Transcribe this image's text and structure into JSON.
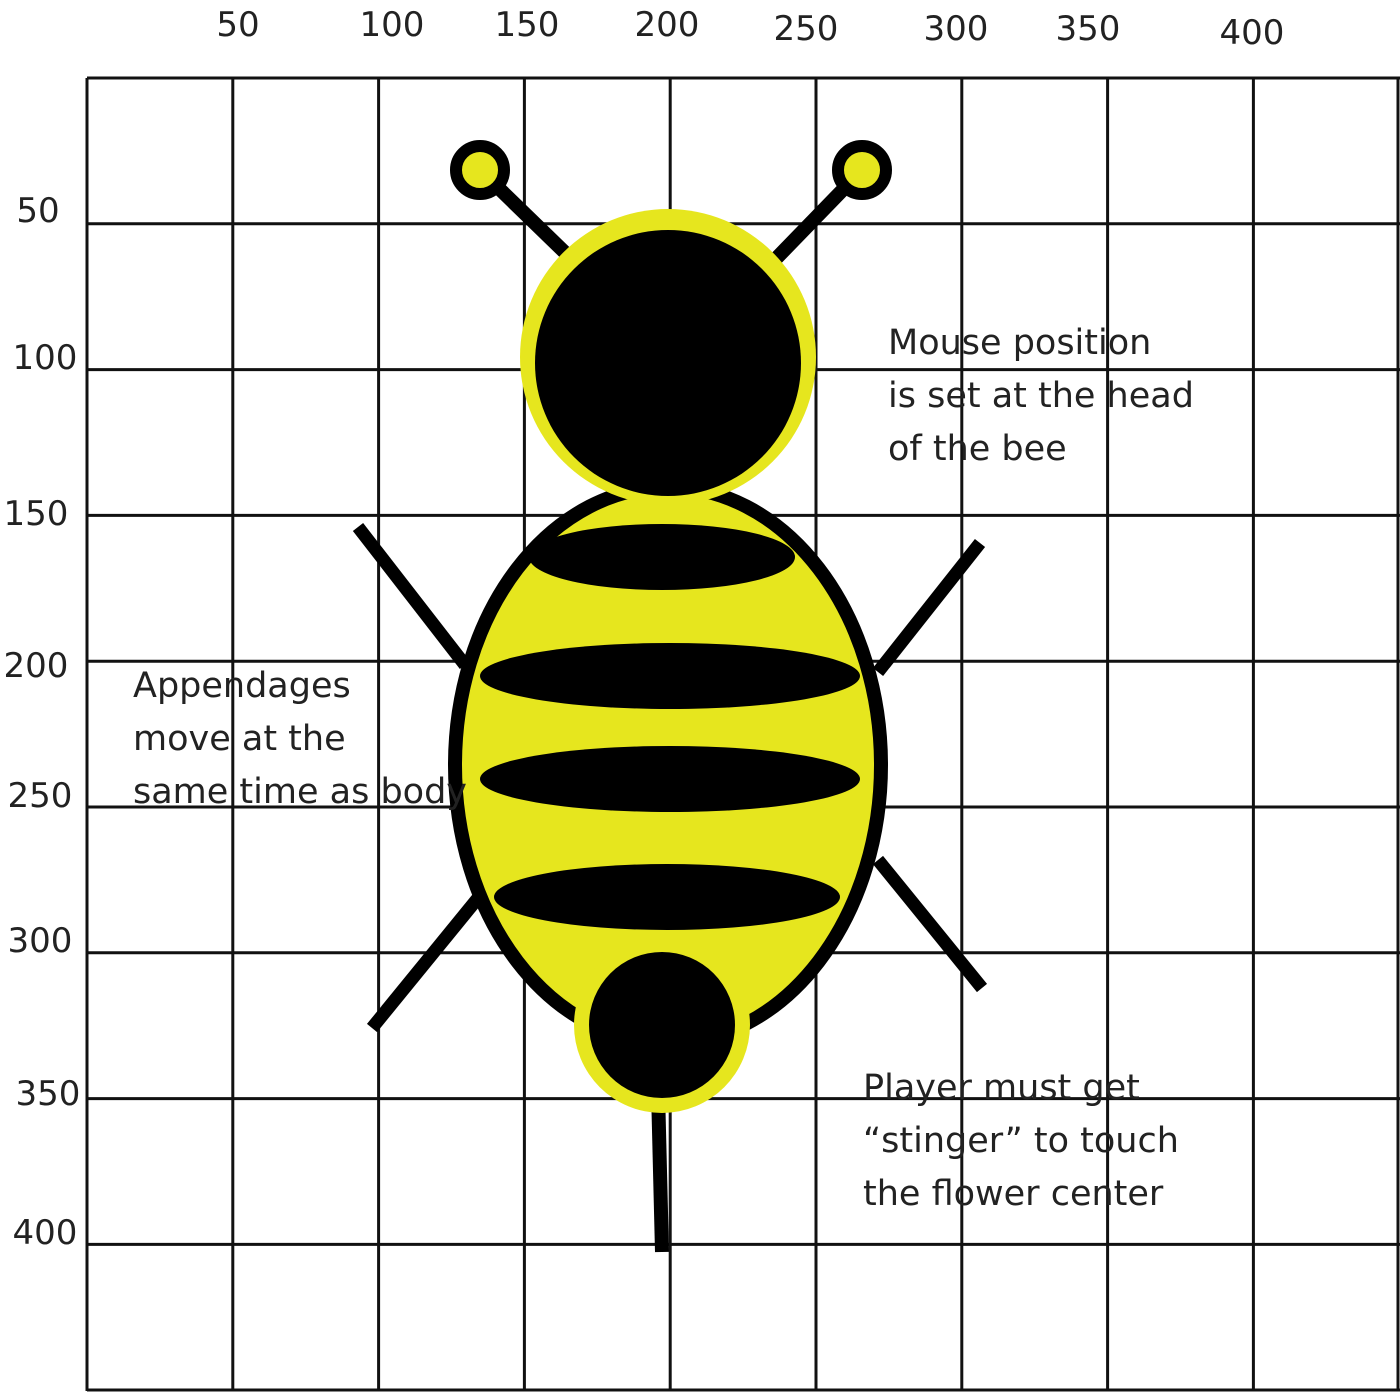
{
  "grid": {
    "x_ticks": [
      "50",
      "100",
      "150",
      "200",
      "250",
      "300",
      "350",
      "400"
    ],
    "y_ticks": [
      "50",
      "100",
      "150",
      "200",
      "250",
      "300",
      "350",
      "400"
    ]
  },
  "annotations": {
    "mouse": [
      "Mouse position",
      "is set at the head",
      "of the bee"
    ],
    "appendages": [
      "Appendages",
      "move at the",
      "same time as body"
    ],
    "stinger": [
      "Player must get",
      "“stinger” to touch",
      "the flower center"
    ]
  },
  "colors": {
    "bee_yellow": "#e6e61e",
    "outline": "#000000",
    "grid": "#111111"
  }
}
